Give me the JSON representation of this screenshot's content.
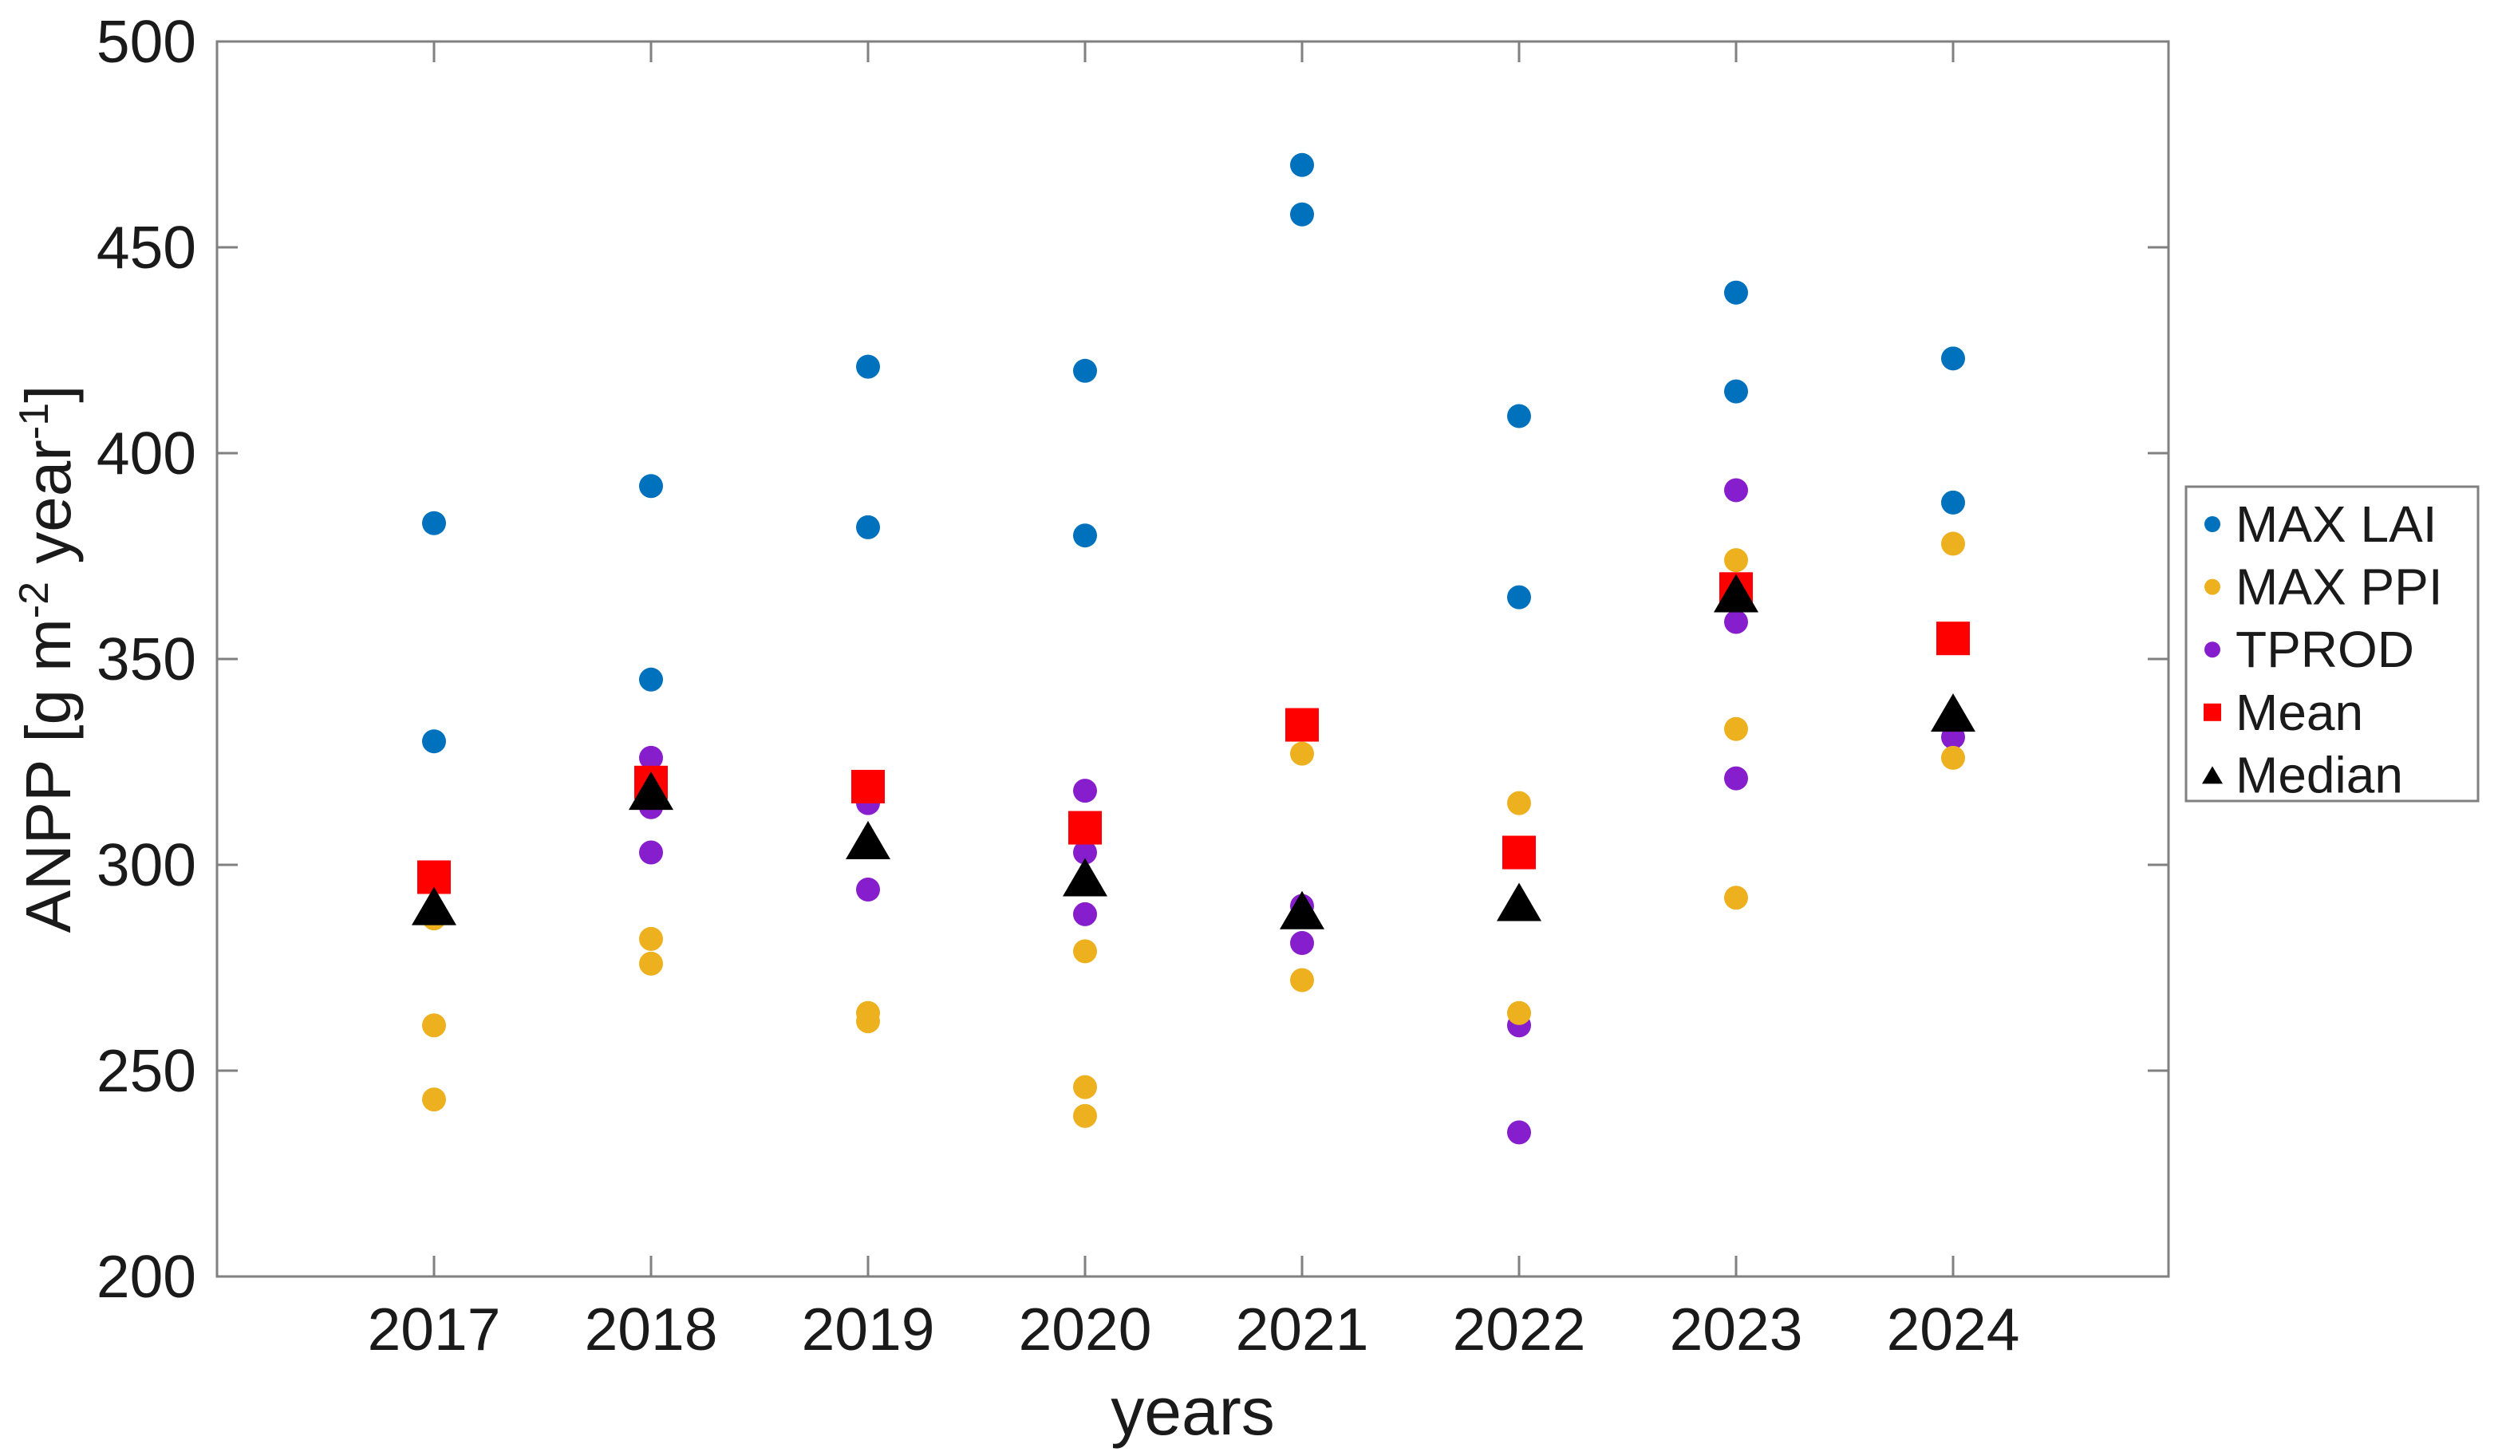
{
  "chart_data": {
    "type": "scatter",
    "title": "",
    "xlabel": "years",
    "ylabel": "ANPP [g m^-2 year^-1]",
    "ylabel_parts": [
      {
        "text": "ANPP [g m"
      },
      {
        "sup": "-2"
      },
      {
        "text": " year"
      },
      {
        "sup": "-1"
      },
      {
        "text": "]"
      }
    ],
    "x_categories": [
      2017,
      2018,
      2019,
      2020,
      2021,
      2022,
      2023,
      2024
    ],
    "xlim": [
      2016,
      2025
    ],
    "ylim": [
      200,
      500
    ],
    "yticks": [
      200,
      250,
      300,
      350,
      400,
      450,
      500
    ],
    "grid": false,
    "legend_position": "right-outside",
    "axis_color": "#808080",
    "text_color": "#1a1a1a",
    "series": [
      {
        "name": "MAX LAI",
        "marker": "circle",
        "color": "#0072BD",
        "points": [
          [
            2017,
            383
          ],
          [
            2017,
            330
          ],
          [
            2018,
            392
          ],
          [
            2018,
            345
          ],
          [
            2019,
            421
          ],
          [
            2019,
            382
          ],
          [
            2020,
            420
          ],
          [
            2020,
            380
          ],
          [
            2021,
            470
          ],
          [
            2021,
            458
          ],
          [
            2022,
            409
          ],
          [
            2022,
            365
          ],
          [
            2023,
            439
          ],
          [
            2023,
            415
          ],
          [
            2024,
            423
          ],
          [
            2024,
            388
          ]
        ]
      },
      {
        "name": "MAX PPI",
        "marker": "circle",
        "color": "#EDB120",
        "points": [
          [
            2017,
            287
          ],
          [
            2017,
            261
          ],
          [
            2017,
            243
          ],
          [
            2018,
            282
          ],
          [
            2018,
            276
          ],
          [
            2019,
            264
          ],
          [
            2019,
            262
          ],
          [
            2020,
            279
          ],
          [
            2020,
            246
          ],
          [
            2020,
            239
          ],
          [
            2021,
            327
          ],
          [
            2021,
            272
          ],
          [
            2022,
            315
          ],
          [
            2022,
            264
          ],
          [
            2023,
            374
          ],
          [
            2023,
            333
          ],
          [
            2023,
            292
          ],
          [
            2024,
            378
          ],
          [
            2024,
            326
          ]
        ]
      },
      {
        "name": "TPROD",
        "marker": "circle",
        "color": "#871ECD",
        "points": [
          [
            2018,
            326
          ],
          [
            2018,
            314
          ],
          [
            2018,
            303
          ],
          [
            2019,
            315
          ],
          [
            2019,
            294
          ],
          [
            2020,
            318
          ],
          [
            2020,
            303
          ],
          [
            2020,
            288
          ],
          [
            2021,
            290
          ],
          [
            2021,
            281
          ],
          [
            2022,
            261
          ],
          [
            2022,
            235
          ],
          [
            2023,
            391
          ],
          [
            2023,
            359
          ],
          [
            2023,
            321
          ],
          [
            2024,
            331
          ]
        ]
      },
      {
        "name": "Mean",
        "marker": "square",
        "color": "#FF0000",
        "points": [
          [
            2017,
            297
          ],
          [
            2018,
            320
          ],
          [
            2019,
            319
          ],
          [
            2020,
            309
          ],
          [
            2021,
            334
          ],
          [
            2022,
            303
          ],
          [
            2023,
            367
          ],
          [
            2024,
            355
          ]
        ]
      },
      {
        "name": "Median",
        "marker": "triangle",
        "color": "#000000",
        "points": [
          [
            2017,
            290
          ],
          [
            2018,
            318
          ],
          [
            2019,
            306
          ],
          [
            2020,
            297
          ],
          [
            2021,
            289
          ],
          [
            2022,
            291
          ],
          [
            2023,
            366
          ],
          [
            2024,
            337
          ]
        ]
      }
    ]
  }
}
